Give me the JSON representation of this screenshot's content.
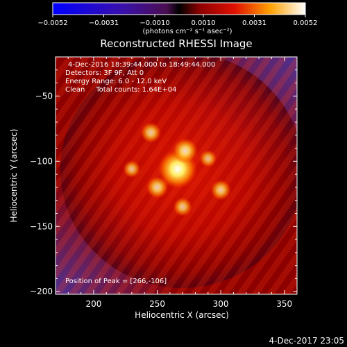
{
  "chart_data": {
    "type": "heatmap",
    "title": "Reconstructed RHESSI Image",
    "xlabel": "Heliocentric X (arcsec)",
    "ylabel": "Heliocentric Y (arcsec)",
    "xlim": [
      170,
      360
    ],
    "ylim": [
      -202,
      -20
    ],
    "xticks": [
      200,
      250,
      300,
      350
    ],
    "yticks": [
      -50,
      -100,
      -150,
      -200
    ],
    "xtick_labels": [
      "200",
      "250",
      "300",
      "350"
    ],
    "ytick_labels": [
      "−50",
      "−100",
      "−150",
      "−200"
    ],
    "colorbar": {
      "range": [
        -0.0052,
        0.0052
      ],
      "tick_values": [
        -0.0052,
        -0.0031,
        -0.001,
        0.001,
        0.0031,
        0.0052
      ],
      "tick_labels": [
        "−0.0052",
        "−0.0031",
        "−0.0010",
        "0.0010",
        "0.0031",
        "0.0052"
      ],
      "units_label": "(photons cm⁻² s⁻¹ asec⁻²)"
    },
    "annotations": [
      "4-Dec-2016 18:39:44.000 to 18:49:44.000",
      "Detectors: 3F 9F, Att 0",
      "Energy Range: 6.0 - 12.0 keV",
      "Clean     Total counts: 1.64E+04"
    ],
    "peak_label": "Position of Peak = [266,-106]",
    "peak": {
      "x": 266,
      "y": -106
    },
    "sources": [
      {
        "x": 266,
        "y": -106,
        "amp": 1.0
      },
      {
        "x": 272,
        "y": -92,
        "amp": 0.55
      },
      {
        "x": 250,
        "y": -120,
        "amp": 0.45
      },
      {
        "x": 245,
        "y": -78,
        "amp": 0.4
      },
      {
        "x": 300,
        "y": -122,
        "amp": 0.4
      },
      {
        "x": 270,
        "y": -135,
        "amp": 0.35
      },
      {
        "x": 290,
        "y": -98,
        "amp": 0.3
      },
      {
        "x": 230,
        "y": -106,
        "amp": 0.3
      }
    ]
  },
  "footer": {
    "timestamp": "4-Dec-2017 23:05"
  }
}
